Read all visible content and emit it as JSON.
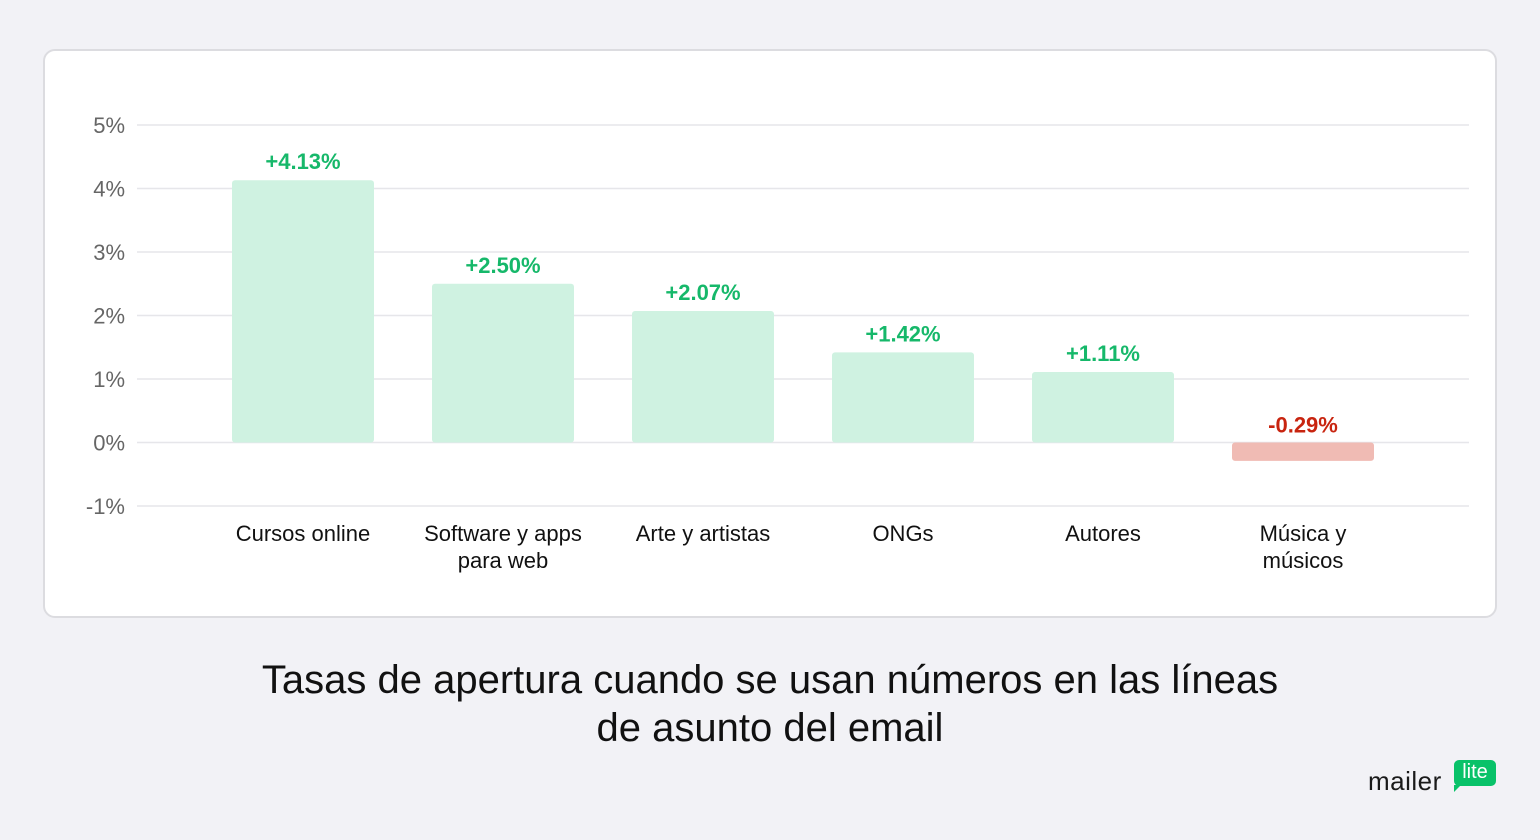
{
  "chart_data": {
    "type": "bar",
    "categories": [
      [
        "Cursos online"
      ],
      [
        "Software y apps",
        "para web"
      ],
      [
        "Arte y artistas"
      ],
      [
        "ONGs"
      ],
      [
        "Autores"
      ],
      [
        "Música y",
        "músicos"
      ]
    ],
    "values": [
      4.13,
      2.5,
      2.07,
      1.42,
      1.11,
      -0.29
    ],
    "value_labels": [
      "+4.13%",
      "+2.50%",
      "+2.07%",
      "+1.42%",
      "+1.11%",
      "-0.29%"
    ],
    "y_ticks": [
      5,
      4,
      3,
      2,
      1,
      0,
      -1
    ],
    "y_tick_labels": [
      "5%",
      "4%",
      "3%",
      "2%",
      "1%",
      "0%",
      "-1%"
    ],
    "ylim": [
      -1,
      5
    ],
    "grid": true,
    "colors": {
      "positive_bar": "#cff2e1",
      "negative_bar": "#f0bbb4",
      "positive_label": "#16b86a",
      "negative_label": "#c8240f",
      "grid": "#e6e6ea",
      "tick": "#666666"
    }
  },
  "caption": {
    "line1": "Tasas de apertura cuando se usan números en las líneas",
    "line2": "de asunto del email"
  },
  "logo": {
    "word": "mailer",
    "badge": "lite",
    "badge_color": "#09c269"
  }
}
